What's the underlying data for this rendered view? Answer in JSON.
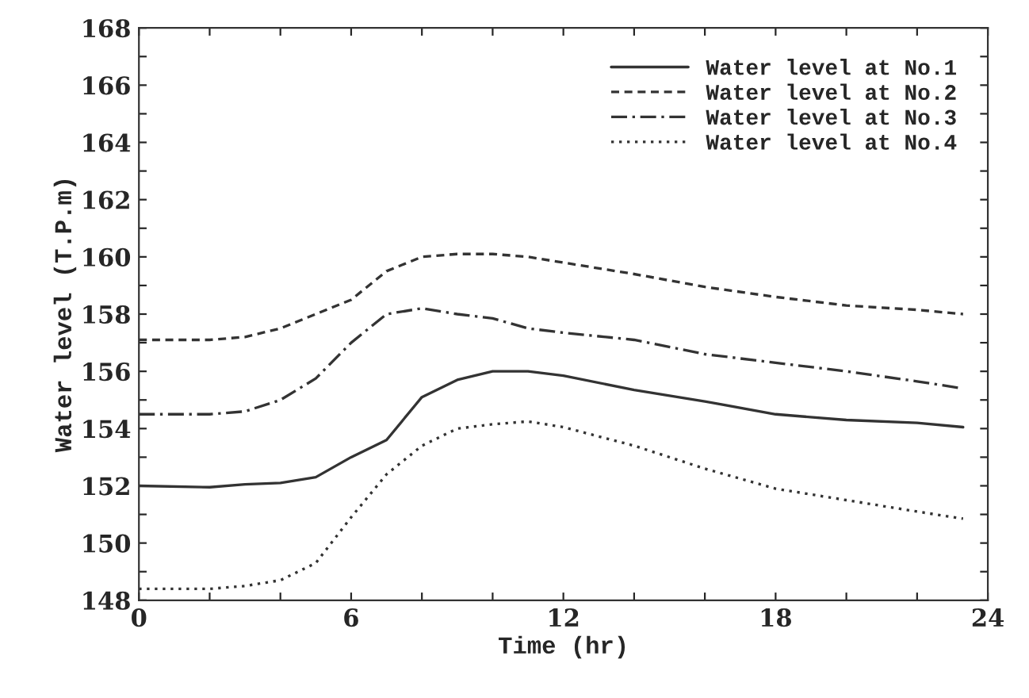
{
  "chart_data": {
    "type": "line",
    "xlabel": "Time (hr)",
    "ylabel": "Water level (T.P.m)",
    "xlim": [
      0,
      24
    ],
    "ylim": [
      148,
      168
    ],
    "xticks": [
      0,
      {
        "value": 2,
        "label": null
      },
      {
        "value": 4,
        "label": null
      },
      6,
      {
        "value": 8,
        "label": null
      },
      {
        "value": 10,
        "label": null
      },
      12,
      {
        "value": 14,
        "label": null
      },
      {
        "value": 16,
        "label": null
      },
      18,
      {
        "value": 20,
        "label": null
      },
      {
        "value": 22,
        "label": null
      },
      24
    ],
    "yticks": [
      148,
      {
        "value": 149,
        "label": null
      },
      150,
      {
        "value": 151,
        "label": null
      },
      152,
      {
        "value": 153,
        "label": null
      },
      154,
      {
        "value": 155,
        "label": null
      },
      156,
      {
        "value": 157,
        "label": null
      },
      158,
      {
        "value": 159,
        "label": null
      },
      160,
      {
        "value": 161,
        "label": null
      },
      162,
      {
        "value": 163,
        "label": null
      },
      164,
      {
        "value": 165,
        "label": null
      },
      166,
      {
        "value": 167,
        "label": null
      },
      168
    ],
    "grid": false,
    "legend": "top right",
    "marker": "none",
    "x": [
      0,
      2,
      3,
      4,
      5,
      6,
      7,
      8,
      9,
      10,
      11,
      12,
      14,
      16,
      18,
      20,
      22,
      23.3
    ],
    "series": [
      {
        "name": "Water level at No.1",
        "color": "#333333",
        "line_style": "solid",
        "values": [
          152.0,
          151.95,
          152.05,
          152.1,
          152.3,
          153.0,
          153.6,
          155.1,
          155.7,
          156.0,
          156.0,
          155.85,
          155.35,
          154.95,
          154.5,
          154.3,
          154.2,
          154.05
        ]
      },
      {
        "name": "Water level at No.2",
        "color": "#333333",
        "line_style": "dashed",
        "values": [
          157.1,
          157.1,
          157.2,
          157.5,
          158.0,
          158.5,
          159.5,
          160.0,
          160.1,
          160.1,
          160.0,
          159.8,
          159.4,
          158.95,
          158.6,
          158.3,
          158.15,
          158.0
        ]
      },
      {
        "name": "Water level at No.3",
        "color": "#333333",
        "line_style": "dashdot",
        "values": [
          154.5,
          154.5,
          154.6,
          155.0,
          155.75,
          157.0,
          158.0,
          158.2,
          158.0,
          157.85,
          157.5,
          157.35,
          157.1,
          156.6,
          156.3,
          156.0,
          155.65,
          155.4
        ]
      },
      {
        "name": "Water level at No.4",
        "color": "#333333",
        "line_style": "dotted",
        "values": [
          148.4,
          148.4,
          148.5,
          148.7,
          149.3,
          150.9,
          152.4,
          153.4,
          154.0,
          154.15,
          154.25,
          154.05,
          153.4,
          152.6,
          151.9,
          151.5,
          151.1,
          150.85
        ]
      }
    ]
  }
}
